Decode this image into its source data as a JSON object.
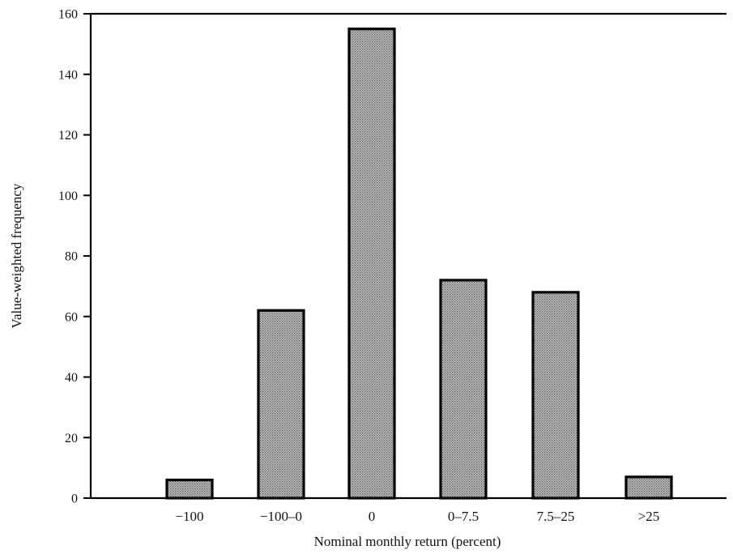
{
  "chart_data": {
    "type": "bar",
    "title": "",
    "xlabel": "Nominal monthly return (percent)",
    "ylabel": "Value-weighted frequency",
    "categories": [
      "−100",
      "−100–0",
      "0",
      "0–7.5",
      "7.5–25",
      ">25"
    ],
    "values": [
      6,
      62,
      155,
      72,
      68,
      7
    ],
    "ylim": [
      0,
      160
    ],
    "yticks": [
      0,
      20,
      40,
      60,
      80,
      100,
      120,
      140,
      160
    ],
    "grid": false,
    "legend": "none",
    "bar_pattern": "stippled-gray",
    "colors": {
      "bar_fill": "#b8b8b8",
      "bar_dot": "#5a5a5a",
      "axis": "#000000"
    }
  }
}
